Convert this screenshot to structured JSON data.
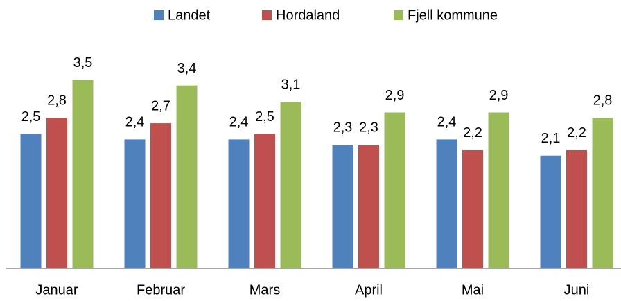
{
  "chart_data": {
    "type": "bar",
    "categories": [
      "Januar",
      "Februar",
      "Mars",
      "April",
      "Mai",
      "Juni"
    ],
    "series": [
      {
        "name": "Landet",
        "color": "#4f81bd",
        "values": [
          2.5,
          2.4,
          2.4,
          2.3,
          2.4,
          2.1
        ],
        "value_labels": [
          "2,5",
          "2,4",
          "2,4",
          "2,3",
          "2,4",
          "2,1"
        ]
      },
      {
        "name": "Hordaland",
        "color": "#c0504d",
        "values": [
          2.8,
          2.7,
          2.5,
          2.3,
          2.2,
          2.2
        ],
        "value_labels": [
          "2,8",
          "2,7",
          "2,5",
          "2,3",
          "2,2",
          "2,2"
        ]
      },
      {
        "name": "Fjell kommune",
        "color": "#9bbb59",
        "values": [
          3.5,
          3.4,
          3.1,
          2.9,
          2.9,
          2.8
        ],
        "value_labels": [
          "3,5",
          "3,4",
          "3,1",
          "2,9",
          "2,9",
          "2,8"
        ]
      }
    ],
    "ylim": [
      0,
      4
    ],
    "legend": "top"
  }
}
